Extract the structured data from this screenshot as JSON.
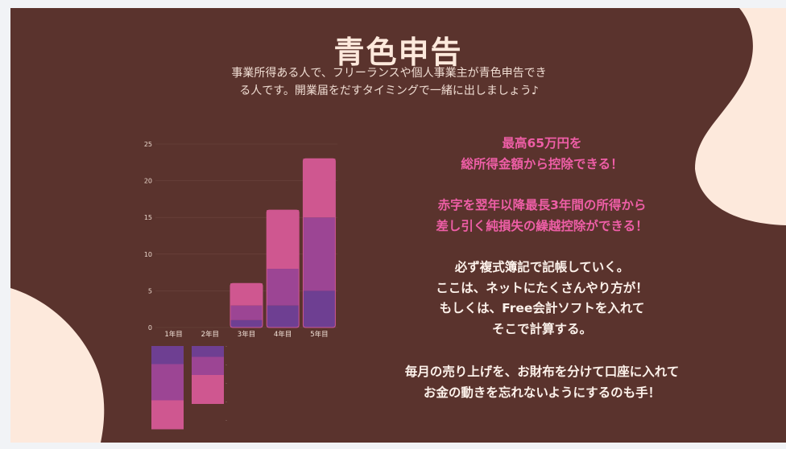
{
  "title": "青色申告",
  "subtitle_lines": [
    "事業所得ある人で、フリーランスや個人事業主が青色申告でき",
    "る人です。開業届をだすタイミングで一緒に出しましょう♪"
  ],
  "highlights": [
    "最高65万円を",
    "総所得金額から控除できる！",
    "赤字を翌年以降最長3年間の所得から",
    "差し引く純損失の繰越控除ができる！"
  ],
  "notes": [
    "必ず複式簿記で記帳していく。",
    "ここは、ネットにたくさんやり方が！",
    "もしくは、Free会計ソフトを入れて",
    "そこで計算する。",
    "毎月の売り上げを、お財布を分けて口座に入れて",
    "お金の動きを忘れないようにするのも手！"
  ],
  "colors": {
    "background": "#5a332d",
    "blob": "#fde9dc",
    "series_bottom": "#6e3f92",
    "series_middle": "#9c4594",
    "series_top": "#cf5790",
    "highlight_text": "#ee5ea6"
  },
  "chart_data": {
    "type": "bar",
    "stacked": true,
    "categories": [
      "1年目",
      "2年目",
      "3年目",
      "4年目",
      "5年目"
    ],
    "series": [
      {
        "values": [
          0,
          0,
          1,
          3,
          5
        ]
      },
      {
        "values": [
          0,
          0,
          2,
          5,
          10
        ]
      },
      {
        "values": [
          0,
          0,
          3,
          8,
          8
        ]
      }
    ],
    "ylim": [
      0,
      25
    ],
    "yticks": [
      0,
      5,
      10,
      15,
      20,
      25
    ],
    "grid": true,
    "legend": "none"
  }
}
